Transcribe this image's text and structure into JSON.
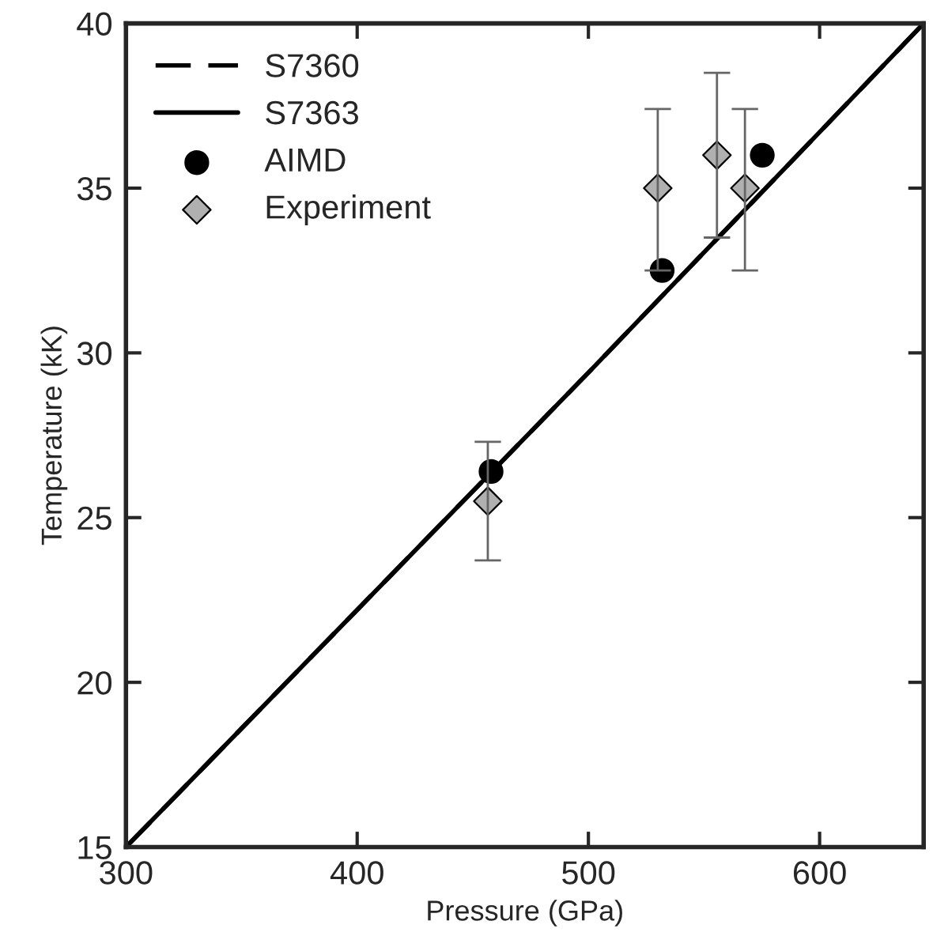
{
  "chart_data": {
    "type": "line",
    "xlabel": "Pressure (GPa)",
    "ylabel": "Temperature (kK)",
    "xlim": [
      300,
      645
    ],
    "ylim": [
      15,
      40
    ],
    "xticks": [
      300,
      400,
      500,
      600
    ],
    "yticks": [
      15,
      20,
      25,
      30,
      35,
      40
    ],
    "grid": false,
    "legend": "top left",
    "series": [
      {
        "name": "S7360",
        "line_style": "dashed",
        "marker": "none",
        "color": "#000000",
        "x": [
          300,
          400,
          500,
          600,
          645
        ],
        "values": [
          15,
          22.2,
          29.4,
          36.7,
          40
        ]
      },
      {
        "name": "S7363",
        "line_style": "solid",
        "marker": "none",
        "color": "#000000",
        "x": [
          300,
          400,
          500,
          600,
          645
        ],
        "values": [
          15,
          22.2,
          29.4,
          36.7,
          40
        ]
      },
      {
        "name": "AIMD",
        "type": "scatter",
        "marker": "circle",
        "color": "#000000",
        "x": [
          457.9,
          531.9,
          575.2
        ],
        "values": [
          26.4,
          32.5,
          36.0
        ]
      },
      {
        "name": "Experiment",
        "type": "scatter",
        "marker": "diamond",
        "color": "#b0b0b0",
        "x": [
          456.5,
          530,
          555.6,
          567.7
        ],
        "values": [
          25.5,
          35.0,
          36.0,
          35.0
        ],
        "errors": [
          [
            23.7,
            27.3
          ],
          [
            32.5,
            37.4
          ],
          [
            33.5,
            38.5
          ],
          [
            32.5,
            37.4
          ]
        ]
      }
    ]
  }
}
